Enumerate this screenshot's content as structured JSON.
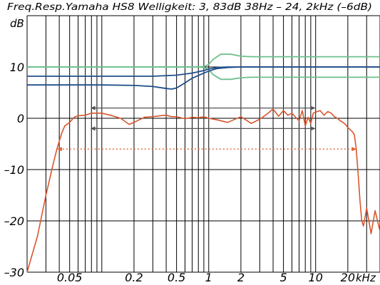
{
  "chart_data": {
    "type": "line",
    "title": "Freq.Resp.Yamaha HS8 Welligkeit: 3, 83dB  38Hz – 24, 2kHz (–6dB)",
    "ylabel": "dB",
    "xunit": "kHz",
    "x_scale": "log",
    "xlim": [
      0.02,
      40
    ],
    "ylim": [
      -30,
      20
    ],
    "grid": true,
    "y_ticks": [
      {
        "value": 10,
        "label": "10"
      },
      {
        "value": 0,
        "label": "0"
      },
      {
        "value": -10,
        "label": "–10"
      },
      {
        "value": -20,
        "label": "–20"
      },
      {
        "value": -30,
        "label": "–30"
      }
    ],
    "x_ticks": [
      {
        "value": 0.05,
        "label": "0.05"
      },
      {
        "value": 0.2,
        "label": "0.2"
      },
      {
        "value": 0.5,
        "label": "0.5"
      },
      {
        "value": 1,
        "label": "1"
      },
      {
        "value": 2,
        "label": "2"
      },
      {
        "value": 5,
        "label": "5"
      },
      {
        "value": 10,
        "label": "10"
      },
      {
        "value": 20,
        "label": "20"
      }
    ],
    "series": [
      {
        "color": "#d9562e",
        "x": [
          0.02,
          0.025,
          0.03,
          0.035,
          0.038,
          0.042,
          0.045,
          0.05,
          0.055,
          0.06,
          0.07,
          0.08,
          0.1,
          0.12,
          0.15,
          0.18,
          0.2,
          0.25,
          0.3,
          0.35,
          0.4,
          0.45,
          0.5,
          0.6,
          0.7,
          0.8,
          0.9,
          1.0,
          1.2,
          1.5,
          2.0,
          2.5,
          3.0,
          3.5,
          4.0,
          4.5,
          5.0,
          5.5,
          6.0,
          6.5,
          7.0,
          7.5,
          8.0,
          8.5,
          9.0,
          9.5,
          10.0,
          11.0,
          12.0,
          13.0,
          14.0,
          15.0,
          16.0,
          17.0,
          18.0,
          19.0,
          20.0,
          21.0,
          22.0,
          23.0,
          24.0,
          25.0,
          26.0,
          27.0,
          28.0,
          30.0,
          33.0,
          36.0,
          40.0
        ],
        "y": [
          -30,
          -23,
          -15,
          -9,
          -6,
          -3,
          -1.5,
          -0.8,
          0.2,
          0.5,
          0.6,
          1.0,
          1.0,
          0.6,
          0.0,
          -1.2,
          -0.8,
          0.2,
          0.3,
          0.5,
          0.6,
          0.3,
          0.3,
          -0.1,
          0.2,
          0.1,
          0.3,
          0.0,
          -0.3,
          -0.8,
          0.3,
          -1.0,
          -0.2,
          0.8,
          1.8,
          0.4,
          1.5,
          0.6,
          1.0,
          0.2,
          -0.5,
          1.5,
          -1.5,
          0.2,
          -1.0,
          1.0,
          1.2,
          1.5,
          0.6,
          1.3,
          1.0,
          0.3,
          0.0,
          -0.5,
          -0.8,
          -1.2,
          -1.8,
          -2.2,
          -2.6,
          -3.2,
          -6.0,
          -11.0,
          -16.0,
          -20.0,
          -21.0,
          -17.5,
          -22.5,
          -18.0,
          -22.0
        ]
      },
      {
        "color": "#6cbf8a",
        "x": [
          0.02,
          0.5,
          0.8,
          0.9,
          1.0,
          1.1,
          1.3,
          1.6,
          2.0,
          2.5,
          40.0
        ],
        "y": [
          10,
          10,
          10,
          10.1,
          10.5,
          11.5,
          12.5,
          12.5,
          12.1,
          12.0,
          12.0
        ]
      },
      {
        "color": "#6cbf8a",
        "x": [
          0.02,
          0.5,
          0.8,
          0.9,
          1.0,
          1.1,
          1.3,
          1.6,
          2.0,
          2.5,
          40.0
        ],
        "y": [
          10,
          10,
          10,
          9.9,
          9.5,
          8.5,
          7.6,
          7.6,
          7.9,
          8.0,
          8.0
        ]
      },
      {
        "color": "#1f4e8c",
        "x": [
          0.02,
          0.3,
          0.5,
          0.7,
          0.9,
          1.0,
          1.2,
          1.5,
          2.0,
          40.0
        ],
        "y": [
          8.2,
          8.2,
          8.4,
          8.8,
          9.3,
          9.6,
          9.9,
          10.0,
          10.0,
          10.0
        ]
      },
      {
        "color": "#1f4e8c",
        "x": [
          0.02,
          0.1,
          0.2,
          0.3,
          0.4,
          0.45,
          0.5,
          0.6,
          0.7,
          0.9,
          1.0,
          1.2,
          1.5,
          2.0,
          40.0
        ],
        "y": [
          6.5,
          6.5,
          6.4,
          6.2,
          5.8,
          5.7,
          5.9,
          6.9,
          7.8,
          8.8,
          9.2,
          9.7,
          9.9,
          10.0,
          10.0
        ]
      }
    ],
    "annotations": [
      {
        "style": "solid-arrow",
        "color": "#555555",
        "x1": 0.078,
        "x2": 10.0,
        "y": 2.0
      },
      {
        "style": "solid-arrow",
        "color": "#555555",
        "x1": 0.078,
        "x2": 10.0,
        "y": -2.0
      },
      {
        "style": "dotted-arrow",
        "color": "#e2622c",
        "x1": 0.038,
        "x2": 24.2,
        "y": -6.0
      }
    ]
  }
}
